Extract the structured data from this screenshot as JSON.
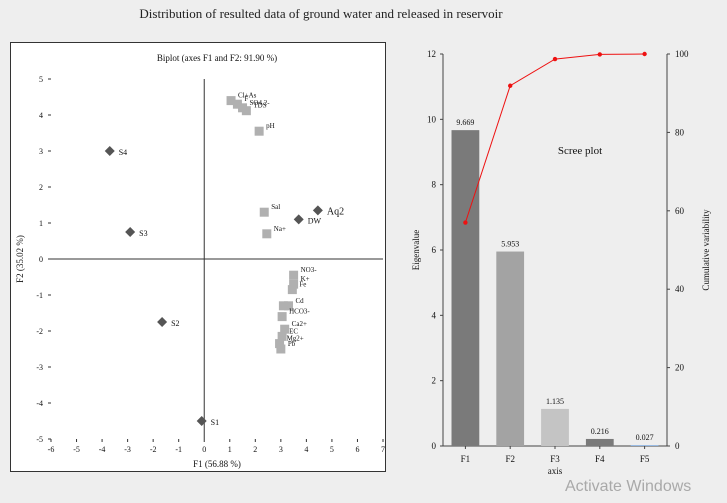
{
  "page_title": "Distribution  of resulted data of ground water and released in reservoir",
  "watermark": "Activate Windows",
  "chart_data": [
    {
      "type": "scatter",
      "title": "Biplot (axes F1 and F2: 91.90  %)",
      "xlabel": "F1 (56.88  %)",
      "ylabel": "F2 (35.02  %)",
      "xlim": [
        -6,
        7
      ],
      "ylim": [
        -5,
        5
      ],
      "xticks": [
        "-6",
        "-5",
        "-4",
        "-3",
        "-2",
        "-1",
        "0",
        "1",
        "2",
        "3",
        "4",
        "5",
        "6",
        "7"
      ],
      "yticks": [
        "5",
        "4",
        "3",
        "2",
        "1",
        "0",
        "-1",
        "-2",
        "-3",
        "-4",
        "-5"
      ],
      "grid": false,
      "series": [
        {
          "name": "",
          "marker": "diamond",
          "color": "#555555",
          "points": [
            {
              "label": "S4",
              "x": -3.7,
              "y": 3.0
            },
            {
              "label": "S3",
              "x": -2.9,
              "y": 0.75
            },
            {
              "label": "S2",
              "x": -1.65,
              "y": -1.75
            },
            {
              "label": "S1",
              "x": -0.1,
              "y": -4.5
            },
            {
              "label": "DW",
              "x": 3.7,
              "y": 1.1
            },
            {
              "label": "Aq2",
              "x": 4.45,
              "y": 1.35
            }
          ]
        },
        {
          "name": "",
          "marker": "square",
          "color": "#b0b0b0",
          "points": [
            {
              "label": "Cl+As",
              "x": 1.05,
              "y": 4.4
            },
            {
              "label": "F",
              "x": 1.3,
              "y": 4.3
            },
            {
              "label": "SO4 2-",
              "x": 1.5,
              "y": 4.2
            },
            {
              "label": "TDS",
              "x": 1.65,
              "y": 4.12
            },
            {
              "label": "pH",
              "x": 2.15,
              "y": 3.55
            },
            {
              "label": "Sal",
              "x": 2.35,
              "y": 1.3
            },
            {
              "label": "Na+",
              "x": 2.45,
              "y": 0.7
            },
            {
              "label": "NO3-",
              "x": 3.5,
              "y": -0.45
            },
            {
              "label": "K+",
              "x": 3.5,
              "y": -0.7
            },
            {
              "label": "Fe",
              "x": 3.45,
              "y": -0.85
            },
            {
              "label": "Cd",
              "x": 3.3,
              "y": -1.3
            },
            {
              "label": "",
              "x": 3.1,
              "y": -1.3
            },
            {
              "label": "HCO3-",
              "x": 3.05,
              "y": -1.6
            },
            {
              "label": "Ca2+",
              "x": 3.15,
              "y": -1.95
            },
            {
              "label": "EC",
              "x": 3.05,
              "y": -2.15
            },
            {
              "label": "Mg2+",
              "x": 2.95,
              "y": -2.35
            },
            {
              "label": "Pb",
              "x": 3.0,
              "y": -2.5
            }
          ]
        }
      ]
    },
    {
      "type": "bar",
      "title": "Scree plot",
      "xlabel": "axis",
      "ylabel": "Eigenvalue",
      "y2label": "Cumulative variability",
      "categories": [
        "F1",
        "F2",
        "F3",
        "F4",
        "F5"
      ],
      "values": [
        9.669,
        5.953,
        1.135,
        0.216,
        0.027
      ],
      "value_labels": [
        "9.669",
        "5.953",
        "1.135",
        "0.216",
        "0.027"
      ],
      "bar_colors": [
        "#7a7a7a",
        "#a3a3a3",
        "#c4c4c4",
        "#7a7a7a",
        "#8db3e2"
      ],
      "ylim": [
        0,
        12
      ],
      "yticks": [
        "0",
        "2",
        "4",
        "6",
        "8",
        "10",
        "12"
      ],
      "y2lim": [
        0,
        100
      ],
      "y2ticks": [
        "0",
        "20",
        "40",
        "60",
        "80",
        "100"
      ],
      "cumulative": {
        "color": "#ee1111",
        "values": [
          57.0,
          91.9,
          98.7,
          99.9,
          100.0
        ]
      }
    }
  ]
}
